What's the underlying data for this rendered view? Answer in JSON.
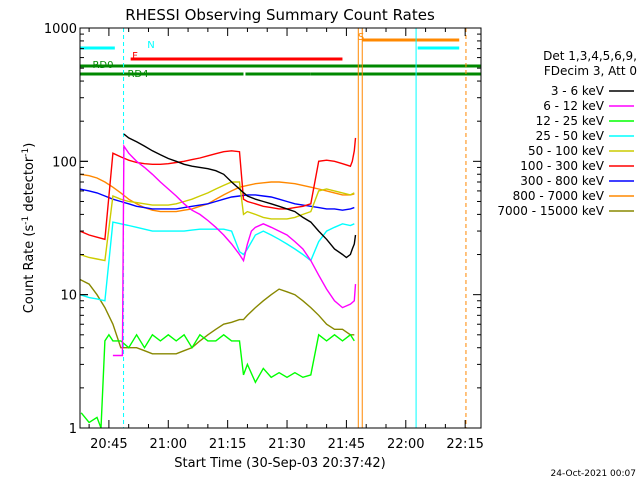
{
  "chart_data": {
    "type": "line",
    "title": "RHESSI Observing Summary Count Rates",
    "xlabel": "Start Time (30-Sep-03 20:37:42)",
    "ylabel": "Count Rate (s",
    "ylabel_sup1": "-1",
    "ylabel_mid": " detector",
    "ylabel_sup2": "-1",
    "ylabel_end": ")",
    "yscale": "log",
    "ylim": [
      1,
      1000
    ],
    "xlim_min": [
      37.7,
      139
    ],
    "x_ticks": [
      {
        "min": 45,
        "label": "20:45"
      },
      {
        "min": 60,
        "label": "21:00"
      },
      {
        "min": 75,
        "label": "21:15"
      },
      {
        "min": 90,
        "label": "21:30"
      },
      {
        "min": 105,
        "label": "21:45"
      },
      {
        "min": 120,
        "label": "22:00"
      },
      {
        "min": 135,
        "label": "22:15"
      }
    ],
    "y_ticks": [
      {
        "value": 1,
        "label": "1"
      },
      {
        "value": 10,
        "label": "10"
      },
      {
        "value": 100,
        "label": "100"
      },
      {
        "value": 1000,
        "label": "1000"
      }
    ],
    "timestamp": "24-Oct-2021 00:07",
    "legend_header": [
      "Det 1,3,4,5,6,9,",
      "FDecim 3, Att 0"
    ],
    "legend": [
      {
        "label": "3 - 6 keV",
        "color": "#000000"
      },
      {
        "label": "6 - 12 keV",
        "color": "#ff00ff"
      },
      {
        "label": "12 - 25 keV",
        "color": "#00ff00"
      },
      {
        "label": "25 - 50 keV",
        "color": "#00ffff"
      },
      {
        "label": "50 - 100 keV",
        "color": "#cccc00"
      },
      {
        "label": "100 - 300 keV",
        "color": "#ff0000"
      },
      {
        "label": "300 - 800 keV",
        "color": "#0000ff"
      },
      {
        "label": "800 - 7000 keV",
        "color": "#ff8800"
      },
      {
        "label": "7000 - 15000 keV",
        "color": "#888800"
      }
    ],
    "flag_bars": [
      {
        "label": "N",
        "color": "#00ffff",
        "segments": [
          [
            37.7,
            46.5
          ],
          [
            123,
            133.5
          ]
        ]
      },
      {
        "label": "F",
        "color": "#ff0000",
        "segments": [
          [
            50.5,
            104
          ]
        ]
      },
      {
        "label": "S",
        "color": "#ff8800",
        "segments": [
          [
            109,
            133.5
          ]
        ]
      },
      {
        "label": "RD0",
        "color": "#008800",
        "segments": [
          [
            37.7,
            108.5
          ],
          [
            108.5,
            139
          ]
        ]
      },
      {
        "label": "RD4",
        "color": "#008800",
        "segments": [
          [
            37.7,
            79
          ],
          [
            79.5,
            96
          ],
          [
            96,
            139
          ]
        ]
      }
    ],
    "vertical_markers": [
      {
        "min": 48.7,
        "color": "#00ffff",
        "style": "dash"
      },
      {
        "min": 108.0,
        "color": "#ff8800",
        "style": "solid"
      },
      {
        "min": 109.0,
        "color": "#ff8800",
        "style": "solid"
      },
      {
        "min": 122.6,
        "color": "#00ffff",
        "style": "solid"
      },
      {
        "min": 135.2,
        "color": "#ff8800",
        "style": "dash"
      }
    ],
    "series": [
      {
        "name": "3 - 6 keV",
        "color": "#000000",
        "x": [
          48.8,
          50,
          52,
          54,
          56,
          58,
          60,
          62,
          64,
          66,
          68,
          70,
          72,
          74,
          76,
          78,
          78.5,
          80,
          82,
          84,
          86,
          88,
          90,
          92,
          94,
          96,
          98,
          100,
          102,
          104,
          105,
          106,
          106.5,
          107,
          107.3
        ],
        "y": [
          160,
          150,
          140,
          130,
          120,
          112,
          105,
          100,
          95,
          92,
          90,
          88,
          85,
          80,
          70,
          62,
          60,
          55,
          52,
          50,
          48,
          46,
          44,
          42,
          38,
          35,
          30,
          26,
          22,
          20,
          19,
          20,
          22,
          24,
          28
        ]
      },
      {
        "name": "6 - 12 keV",
        "color": "#ff00ff",
        "x": [
          46,
          46.5,
          47,
          47.5,
          48,
          48.4,
          48.8,
          50,
          52,
          54,
          56,
          58,
          60,
          62,
          64,
          66,
          68,
          70,
          72,
          74,
          76,
          78,
          79,
          80,
          81,
          82,
          84,
          86,
          88,
          90,
          92,
          94,
          96,
          98,
          100,
          102,
          104,
          106,
          107,
          107.3
        ],
        "y": [
          3.5,
          3.5,
          3.5,
          3.5,
          3.5,
          3.5,
          130,
          115,
          100,
          90,
          80,
          70,
          62,
          55,
          48,
          43,
          40,
          36,
          32,
          28,
          24,
          20,
          18,
          24,
          30,
          32,
          34,
          32,
          30,
          28,
          25,
          22,
          18,
          14,
          11,
          9,
          8,
          8.5,
          9,
          12
        ]
      },
      {
        "name": "12 - 25 keV",
        "color": "#00ff00",
        "x": [
          38,
          40,
          42,
          43,
          44,
          45,
          46,
          48,
          50,
          52,
          54,
          56,
          58,
          60,
          62,
          64,
          66,
          68,
          70,
          72,
          74,
          76,
          78,
          79,
          80,
          82,
          84,
          86,
          88,
          90,
          92,
          94,
          96,
          98,
          100,
          102,
          104,
          106,
          107
        ],
        "y": [
          1.3,
          1.1,
          1.2,
          1.0,
          4.5,
          5.0,
          4.5,
          4.5,
          4.0,
          5.0,
          4.0,
          5.0,
          4.5,
          5.0,
          4.5,
          5.0,
          4.0,
          5.0,
          4.5,
          4.5,
          5.0,
          4.5,
          4.5,
          2.5,
          3.0,
          2.2,
          2.8,
          2.4,
          2.6,
          2.4,
          2.6,
          2.4,
          2.5,
          5.0,
          4.5,
          5.0,
          4.5,
          5.0,
          4.5
        ]
      },
      {
        "name": "25 - 50 keV",
        "color": "#00ffff",
        "x": [
          37.7,
          40,
          42,
          44,
          46,
          48,
          50,
          52,
          54,
          56,
          58,
          60,
          62,
          64,
          66,
          68,
          70,
          72,
          74,
          76,
          78,
          79,
          80,
          82,
          84,
          86,
          88,
          90,
          92,
          94,
          96,
          98,
          100,
          102,
          104,
          106,
          107
        ],
        "y": [
          10,
          9.5,
          9.3,
          9.0,
          35,
          34,
          33,
          32,
          31,
          30,
          30,
          30,
          30,
          30,
          30.5,
          31,
          31,
          31,
          31,
          30,
          21,
          20,
          22,
          28,
          30,
          28,
          26,
          24,
          22,
          20,
          18,
          25,
          30,
          32,
          34,
          33,
          34
        ]
      },
      {
        "name": "50 - 100 keV",
        "color": "#cccc00",
        "x": [
          37.7,
          40,
          42,
          44,
          46,
          48,
          50,
          52,
          54,
          56,
          58,
          60,
          62,
          64,
          66,
          68,
          70,
          72,
          74,
          76,
          78,
          79,
          80,
          82,
          84,
          86,
          88,
          90,
          92,
          94,
          96,
          98,
          100,
          102,
          104,
          106,
          107
        ],
        "y": [
          20,
          19,
          18.5,
          18,
          55,
          52,
          50,
          49,
          48,
          47,
          47,
          47,
          48,
          50,
          52,
          55,
          58,
          62,
          66,
          70,
          70,
          40,
          42,
          40,
          38,
          37,
          37,
          37,
          38,
          40,
          42,
          60,
          62,
          60,
          58,
          56,
          58
        ]
      },
      {
        "name": "100 - 300 keV",
        "color": "#ff0000",
        "x": [
          37.7,
          40,
          42,
          44,
          46,
          48,
          50,
          52,
          54,
          56,
          58,
          60,
          62,
          64,
          66,
          68,
          70,
          72,
          74,
          76,
          78,
          79,
          80,
          82,
          84,
          86,
          88,
          90,
          92,
          94,
          96,
          98,
          100,
          102,
          104,
          106,
          106.5,
          107,
          107.3
        ],
        "y": [
          30,
          28,
          27,
          26,
          115,
          108,
          102,
          98,
          96,
          95,
          95,
          96,
          98,
          100,
          103,
          106,
          110,
          114,
          118,
          120,
          118,
          52,
          50,
          48,
          46,
          45,
          44,
          44,
          45,
          46,
          48,
          100,
          102,
          100,
          96,
          92,
          100,
          120,
          150
        ]
      },
      {
        "name": "300 - 800 keV",
        "color": "#0000ff",
        "x": [
          37.7,
          40,
          42,
          44,
          46,
          48,
          50,
          52,
          54,
          56,
          58,
          60,
          62,
          64,
          66,
          68,
          70,
          72,
          74,
          76,
          78,
          80,
          82,
          84,
          86,
          88,
          90,
          92,
          94,
          96,
          98,
          100,
          102,
          104,
          106,
          107
        ],
        "y": [
          62,
          60,
          58,
          55,
          52,
          50,
          48,
          46,
          45,
          44,
          44,
          44,
          44,
          45,
          46,
          47,
          48,
          50,
          52,
          54,
          55,
          56,
          56,
          55,
          54,
          52,
          50,
          48,
          47,
          46,
          45,
          44,
          44,
          43,
          44,
          45
        ]
      },
      {
        "name": "800 - 7000 keV",
        "color": "#ff8800",
        "x": [
          37.7,
          40,
          42,
          44,
          46,
          48,
          50,
          52,
          54,
          56,
          58,
          60,
          62,
          64,
          66,
          68,
          70,
          72,
          74,
          76,
          78,
          80,
          82,
          84,
          86,
          88,
          90,
          92,
          94,
          96,
          98,
          100,
          102,
          104,
          106,
          107
        ],
        "y": [
          80,
          78,
          75,
          70,
          64,
          58,
          52,
          48,
          45,
          43,
          42,
          42,
          42,
          43,
          44,
          46,
          48,
          52,
          56,
          60,
          64,
          66,
          68,
          69,
          70,
          70,
          69,
          68,
          66,
          64,
          62,
          60,
          58,
          56,
          56,
          57
        ]
      },
      {
        "name": "7000 - 15000 keV",
        "color": "#888800",
        "x": [
          37.7,
          40,
          42,
          44,
          46,
          48,
          50,
          52,
          54,
          56,
          58,
          60,
          62,
          64,
          66,
          68,
          70,
          72,
          74,
          76,
          78,
          79,
          80,
          82,
          84,
          86,
          88,
          90,
          92,
          94,
          96,
          98,
          100,
          102,
          104,
          106,
          107
        ],
        "y": [
          13,
          12,
          10,
          8,
          6,
          4,
          4,
          4,
          3.8,
          3.6,
          3.6,
          3.6,
          3.6,
          3.8,
          4,
          4.5,
          5,
          5.5,
          6,
          6.2,
          6.5,
          6.5,
          7,
          8,
          9,
          10,
          11,
          10.5,
          10,
          9,
          8,
          7,
          6,
          5.5,
          5.5,
          5,
          5
        ]
      }
    ]
  }
}
